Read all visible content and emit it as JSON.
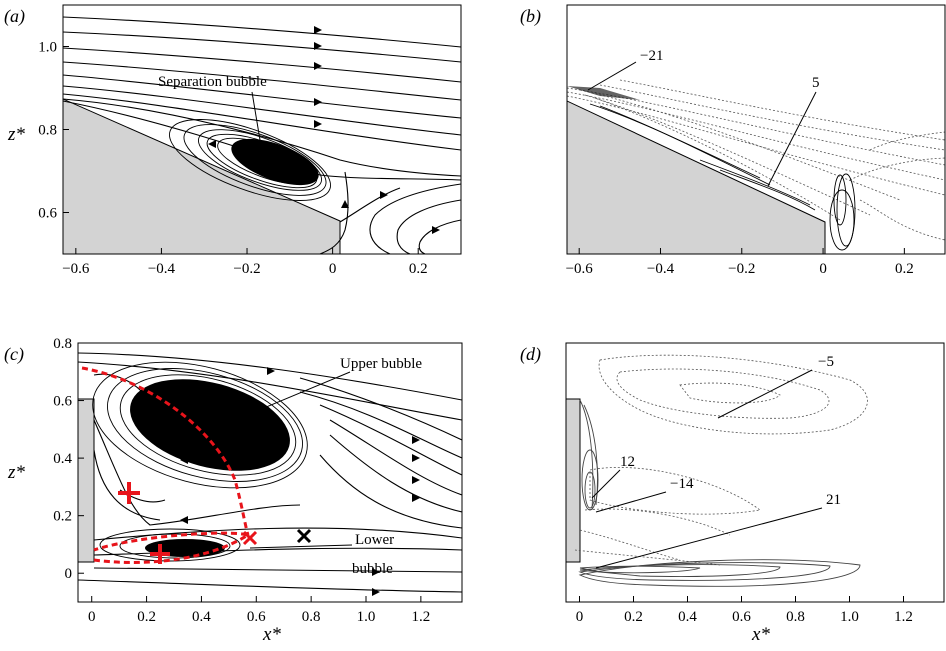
{
  "figure": {
    "panels": [
      {
        "id": "a",
        "panel_label": "(a)",
        "type": "streamline",
        "xlim": [
          -0.63,
          0.3
        ],
        "ylim": [
          0.5,
          1.1
        ],
        "xticks": [
          -0.6,
          -0.4,
          -0.2,
          0,
          0.2
        ],
        "xtick_labels": [
          "−0.6",
          "−0.4",
          "−0.2",
          "0",
          "0.2"
        ],
        "yticks": [
          0.6,
          0.8,
          1.0
        ],
        "ytick_labels": [
          "0.6",
          "0.8",
          "1.0"
        ],
        "xlabel": "",
        "ylabel": "z*",
        "annotations": [
          {
            "text": "Separation bubble",
            "x": -0.2,
            "y": 0.74
          }
        ]
      },
      {
        "id": "b",
        "panel_label": "(b)",
        "type": "contour",
        "xlim": [
          -0.63,
          0.3
        ],
        "ylim": [
          0.5,
          1.1
        ],
        "xticks": [
          -0.6,
          -0.4,
          -0.2,
          0,
          0.2
        ],
        "xtick_labels": [
          "−0.6",
          "−0.4",
          "−0.2",
          "0",
          "0.2"
        ],
        "xlabel": "",
        "ylabel": "",
        "annotations": [
          {
            "text": "−21",
            "x": -0.6,
            "y": 0.89
          },
          {
            "text": "5",
            "x": -0.14,
            "y": 0.68
          }
        ]
      },
      {
        "id": "c",
        "panel_label": "(c)",
        "type": "streamline",
        "xlim": [
          -0.05,
          1.35
        ],
        "ylim": [
          -0.1,
          0.8
        ],
        "xticks": [
          0,
          0.2,
          0.4,
          0.6,
          0.8,
          1.0,
          1.2
        ],
        "xtick_labels": [
          "0",
          "0.2",
          "0.4",
          "0.6",
          "0.8",
          "1.0",
          "1.2"
        ],
        "yticks": [
          0,
          0.2,
          0.4,
          0.6,
          0.8
        ],
        "ytick_labels": [
          "0",
          "0.2",
          "0.4",
          "0.6",
          "0.8"
        ],
        "xlabel": "x*",
        "ylabel": "z*",
        "annotations": [
          {
            "text": "Upper bubble",
            "x": 0.5,
            "y": 0.52
          },
          {
            "text": "Lower",
            "x": 0.6,
            "y": 0.06
          },
          {
            "text": "bubble",
            "x": 0.55,
            "y": 0.0
          }
        ],
        "markers": [
          {
            "type": "plus",
            "x": 0.13,
            "y": 0.25,
            "color": "#e8141b"
          },
          {
            "type": "plus",
            "x": 0.25,
            "y": 0.03,
            "color": "#e8141b"
          },
          {
            "type": "cross",
            "x": 0.57,
            "y": 0.09,
            "color": "#e8141b"
          },
          {
            "type": "cross",
            "x": 0.78,
            "y": 0.1,
            "color": "#000000"
          }
        ]
      },
      {
        "id": "d",
        "panel_label": "(d)",
        "type": "contour",
        "xlim": [
          -0.05,
          1.35
        ],
        "ylim": [
          -0.1,
          0.8
        ],
        "xticks": [
          0,
          0.2,
          0.4,
          0.6,
          0.8,
          1.0,
          1.2
        ],
        "xtick_labels": [
          "0",
          "0.2",
          "0.4",
          "0.6",
          "0.8",
          "1.0",
          "1.2"
        ],
        "xlabel": "x*",
        "ylabel": "",
        "annotations": [
          {
            "text": "−5",
            "x": 0.55,
            "y": 0.52
          },
          {
            "text": "12",
            "x": 0.05,
            "y": 0.2
          },
          {
            "text": "−14",
            "x": 0.06,
            "y": 0.16
          },
          {
            "text": "21",
            "x": 0.05,
            "y": -0.02
          }
        ]
      }
    ],
    "colors": {
      "body": "#d3d3d3",
      "lines": "#000000",
      "dashed_red": "#e8141b"
    }
  },
  "chart_data": [
    {
      "type": "streamline",
      "panel_label": "(a)",
      "title": "",
      "xlabel": "",
      "ylabel": "z*",
      "xlim": [
        -0.63,
        0.3
      ],
      "ylim": [
        0.5,
        1.1
      ],
      "x_ticks": [
        -0.6,
        -0.4,
        -0.2,
        0,
        0.2
      ],
      "y_ticks": [
        0.6,
        0.8,
        1.0
      ],
      "features": [
        "Separation bubble"
      ]
    },
    {
      "type": "contour",
      "panel_label": "(b)",
      "title": "",
      "xlim": [
        -0.63,
        0.3
      ],
      "ylim": [
        0.5,
        1.1
      ],
      "x_ticks": [
        -0.6,
        -0.4,
        -0.2,
        0,
        0.2
      ],
      "contour_labels": [
        -21,
        5
      ]
    },
    {
      "type": "streamline",
      "panel_label": "(c)",
      "title": "",
      "xlabel": "x*",
      "ylabel": "z*",
      "xlim": [
        -0.05,
        1.35
      ],
      "ylim": [
        -0.1,
        0.8
      ],
      "x_ticks": [
        0,
        0.2,
        0.4,
        0.6,
        0.8,
        1.0,
        1.2
      ],
      "y_ticks": [
        0,
        0.2,
        0.4,
        0.6,
        0.8
      ],
      "features": [
        "Upper bubble",
        "Lower bubble"
      ]
    },
    {
      "type": "contour",
      "panel_label": "(d)",
      "title": "",
      "xlabel": "x*",
      "xlim": [
        -0.05,
        1.35
      ],
      "ylim": [
        -0.1,
        0.8
      ],
      "x_ticks": [
        0,
        0.2,
        0.4,
        0.6,
        0.8,
        1.0,
        1.2
      ],
      "contour_labels": [
        -5,
        12,
        -14,
        21
      ]
    }
  ]
}
